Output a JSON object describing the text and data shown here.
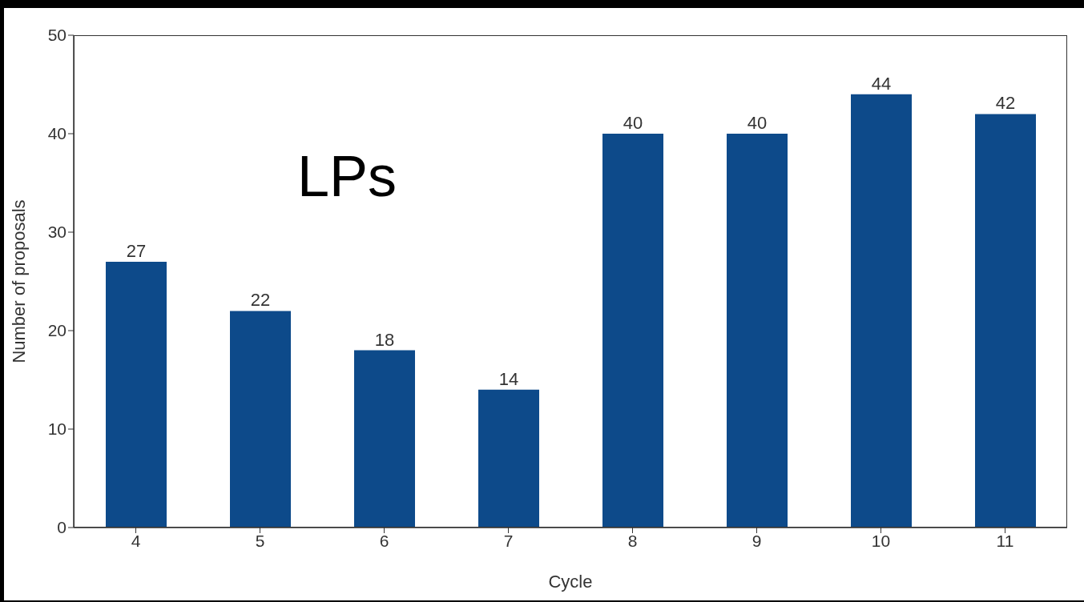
{
  "chart_data": {
    "type": "bar",
    "xlabel": "Cycle",
    "ylabel": "Number of proposals",
    "categories": [
      "4",
      "5",
      "6",
      "7",
      "8",
      "9",
      "10",
      "11"
    ],
    "values": [
      27,
      22,
      18,
      14,
      40,
      40,
      44,
      42
    ],
    "color": "#0d4a8a",
    "ylim": [
      0,
      50
    ],
    "yticks": [
      0,
      10,
      20,
      30,
      40,
      50
    ],
    "data_labels": true,
    "annotations": [
      "LPs"
    ]
  }
}
